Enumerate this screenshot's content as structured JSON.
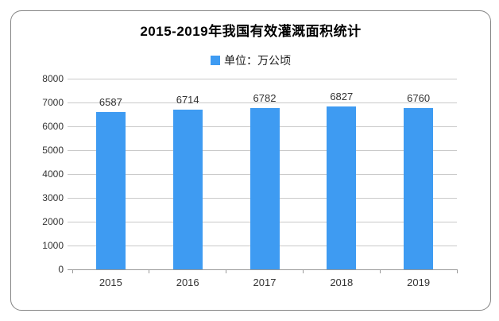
{
  "card": {
    "legend": {
      "label": "单位：万公顷"
    }
  },
  "chart_data": {
    "type": "bar",
    "title": "2015-2019年我国有效灌溉面积统计",
    "categories": [
      "2015",
      "2016",
      "2017",
      "2018",
      "2019"
    ],
    "values": [
      6587,
      6714,
      6782,
      6827,
      6760
    ],
    "series_name": "单位：万公顷",
    "xlabel": "",
    "ylabel": "",
    "ylim": [
      0,
      8000
    ],
    "yticks": [
      0,
      1000,
      2000,
      3000,
      4000,
      5000,
      6000,
      7000,
      8000
    ],
    "grid": true,
    "legend_position": "top",
    "value_labels_shown": true,
    "bar_color": "#3e9bf2",
    "gridline_color": "#c9c9c9",
    "axis_color": "#999999"
  }
}
